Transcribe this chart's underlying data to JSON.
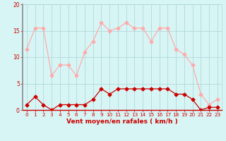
{
  "x": [
    0,
    1,
    2,
    3,
    4,
    5,
    6,
    7,
    8,
    9,
    10,
    11,
    12,
    13,
    14,
    15,
    16,
    17,
    18,
    19,
    20,
    21,
    22,
    23
  ],
  "gusts": [
    11.5,
    15.5,
    15.5,
    6.5,
    8.5,
    8.5,
    6.5,
    11.0,
    13.0,
    16.5,
    15.0,
    15.5,
    16.5,
    15.5,
    15.5,
    13.0,
    15.5,
    15.5,
    11.5,
    10.5,
    8.5,
    3.0,
    1.0,
    2.0
  ],
  "mean_wind": [
    1.0,
    2.5,
    1.0,
    0.0,
    1.0,
    1.0,
    1.0,
    1.0,
    2.0,
    4.0,
    3.0,
    4.0,
    4.0,
    4.0,
    4.0,
    4.0,
    4.0,
    4.0,
    3.0,
    3.0,
    2.0,
    0.0,
    0.5,
    0.5
  ],
  "gusts_color": "#ffaaaa",
  "mean_color": "#cc0000",
  "bg_color": "#d8f5f5",
  "grid_color": "#b0d8d8",
  "xlabel": "Vent moyen/en rafales ( km/h )",
  "xlabel_color": "#cc0000",
  "tick_color": "#cc0000",
  "spine_color": "#888888",
  "ylim": [
    0,
    20
  ],
  "xlim_min": -0.5,
  "xlim_max": 23.5,
  "yticks": [
    0,
    5,
    10,
    15,
    20
  ],
  "xticks": [
    0,
    1,
    2,
    3,
    4,
    5,
    6,
    7,
    8,
    9,
    10,
    11,
    12,
    13,
    14,
    15,
    16,
    17,
    18,
    19,
    20,
    21,
    22,
    23
  ],
  "marker": "D",
  "marker_size": 2.5,
  "line_width": 0.9,
  "figsize": [
    3.2,
    2.0
  ],
  "dpi": 100
}
